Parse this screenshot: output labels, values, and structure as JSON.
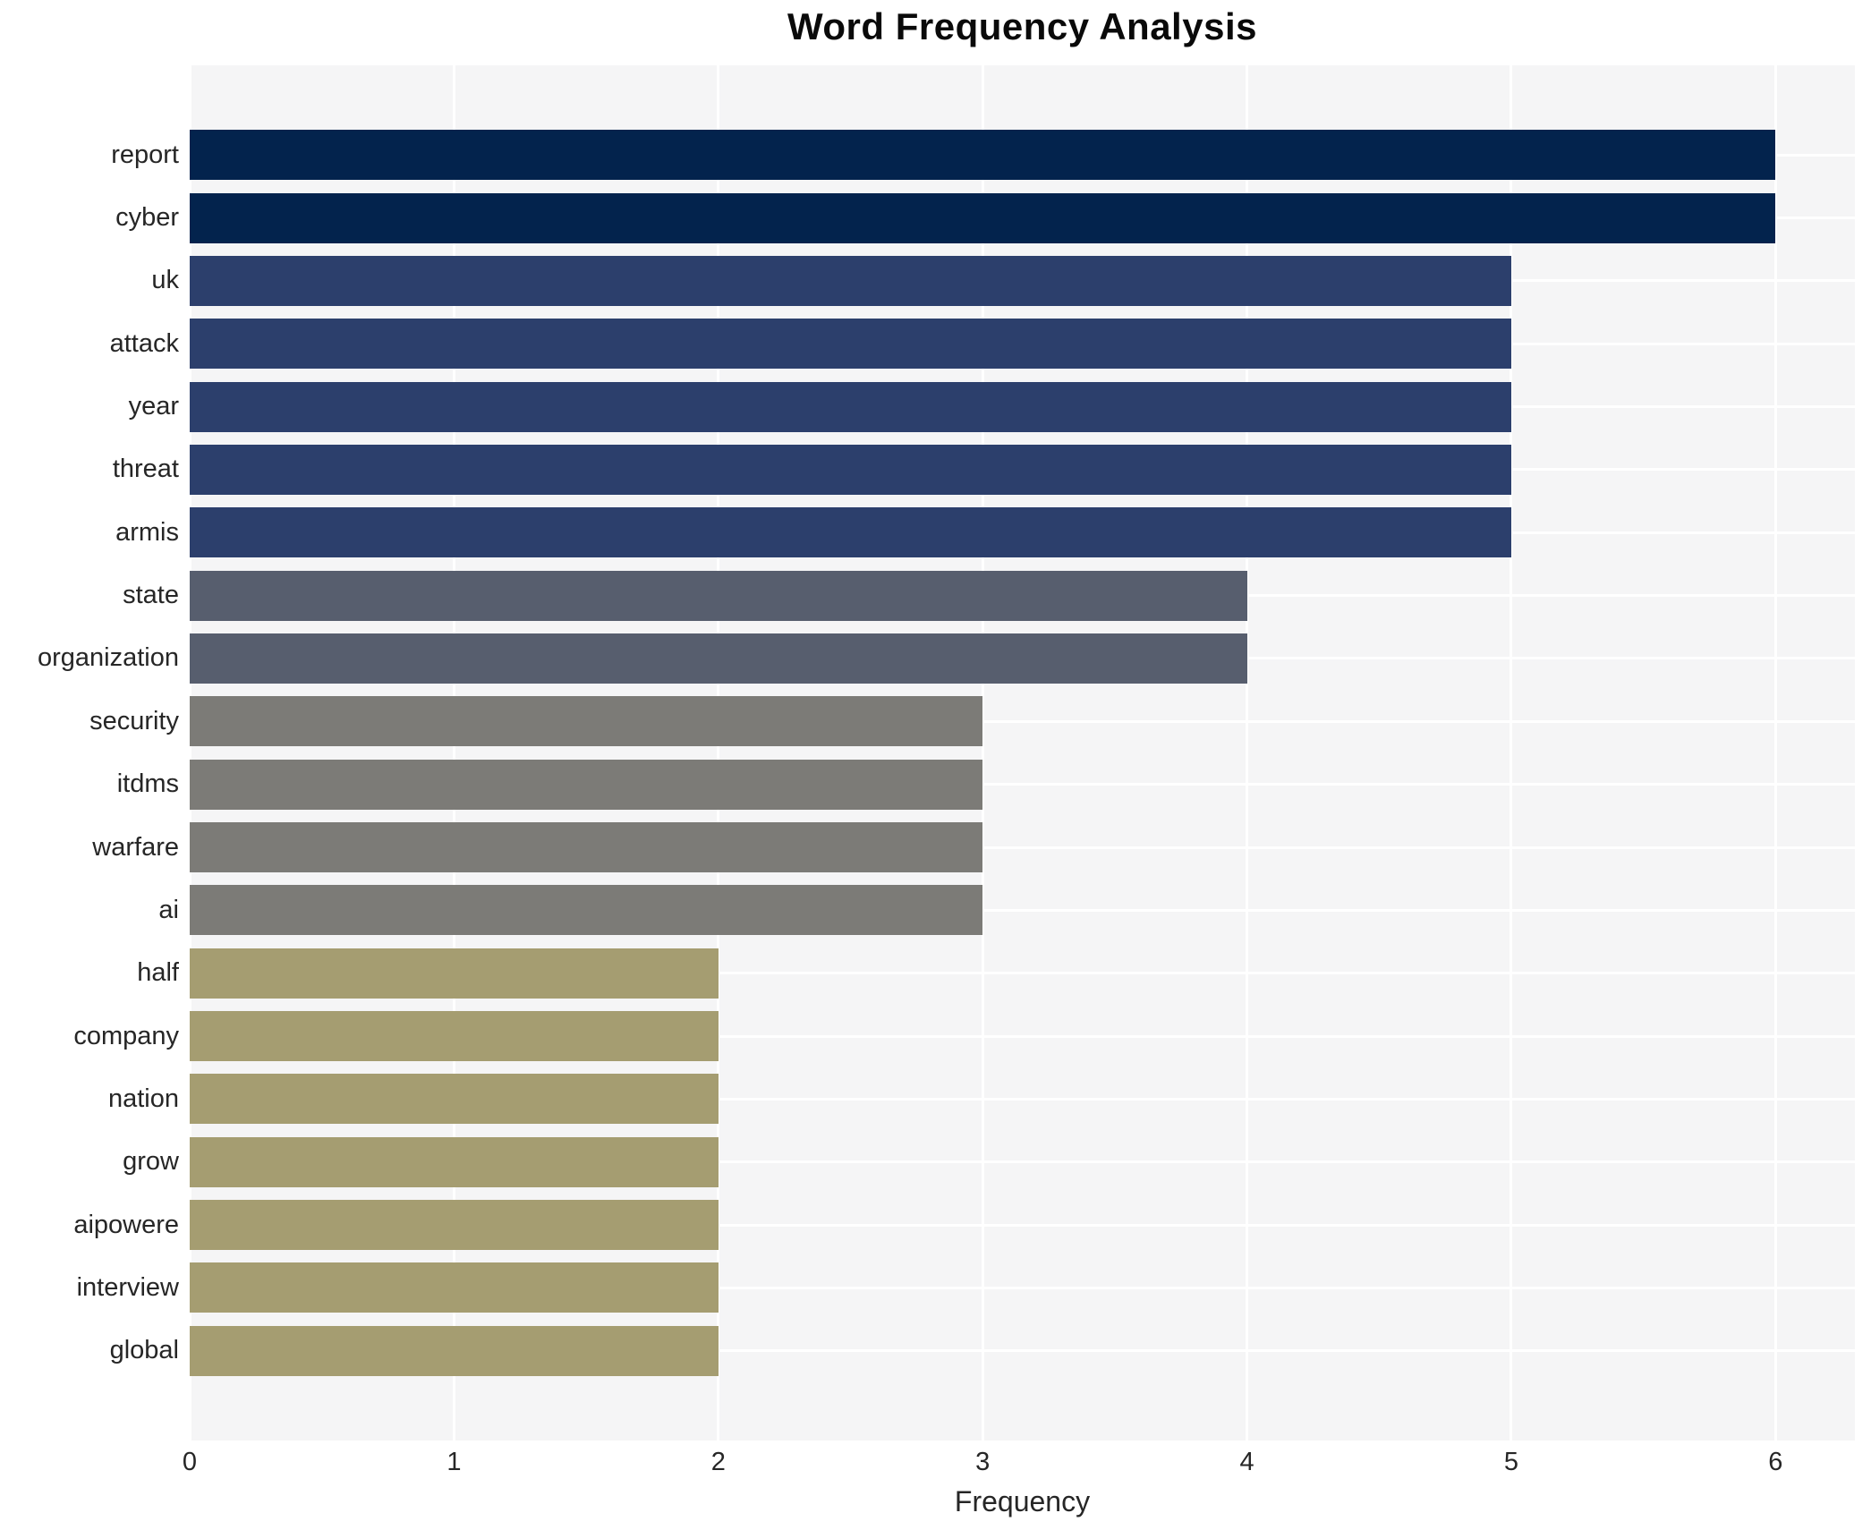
{
  "chart_data": {
    "type": "bar",
    "orientation": "horizontal",
    "title": "Word Frequency Analysis",
    "xlabel": "Frequency",
    "ylabel": "",
    "categories": [
      "report",
      "cyber",
      "uk",
      "attack",
      "year",
      "threat",
      "armis",
      "state",
      "organization",
      "security",
      "itdms",
      "warfare",
      "ai",
      "half",
      "company",
      "nation",
      "grow",
      "aipowere",
      "interview",
      "global"
    ],
    "values": [
      6,
      6,
      5,
      5,
      5,
      5,
      5,
      4,
      4,
      3,
      3,
      3,
      3,
      2,
      2,
      2,
      2,
      2,
      2,
      2
    ],
    "xticks": [
      0,
      1,
      2,
      3,
      4,
      5,
      6
    ],
    "xlim": [
      0,
      6.3
    ],
    "grid": true,
    "legend_position": "none",
    "bar_colors_by_value": {
      "2": "#a59d71",
      "3": "#7c7b77",
      "4": "#575e6e",
      "5": "#2c3f6c",
      "6": "#03234d"
    },
    "plot_background": "#f5f5f6",
    "gridline_color": "#ffffff",
    "tick_text_color": "#262626",
    "title_color": "#0a0a0a"
  }
}
